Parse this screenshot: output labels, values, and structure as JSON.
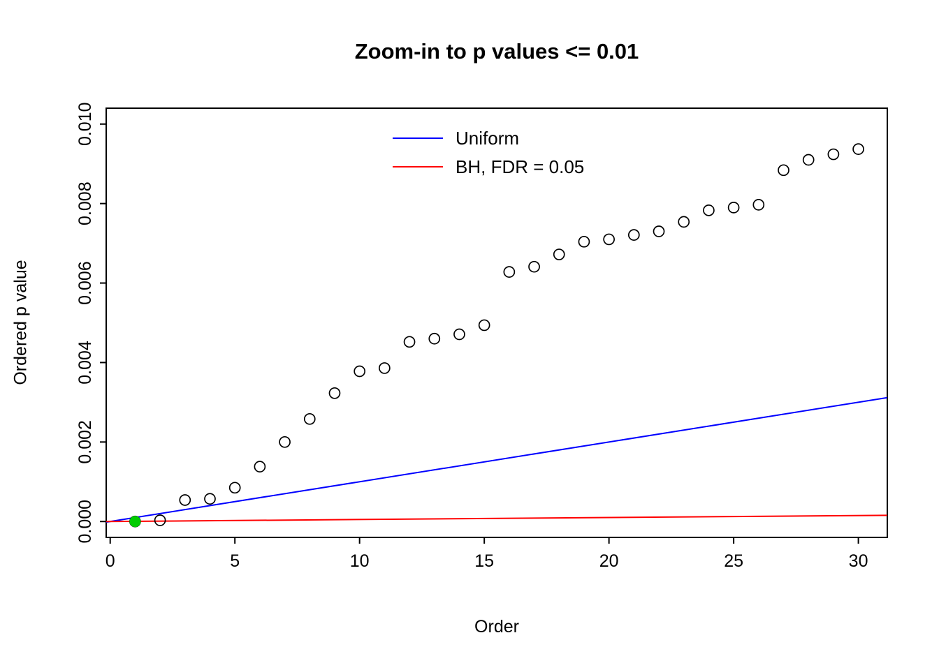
{
  "chart_data": {
    "type": "scatter",
    "title": "Zoom-in to p values <= 0.01",
    "xlabel": "Order",
    "ylabel": "Ordered p value",
    "xlim": [
      -0.16,
      31.16
    ],
    "ylim": [
      -0.0004,
      0.0104
    ],
    "grid": false,
    "xticks": [
      {
        "v": 0,
        "label": "0"
      },
      {
        "v": 5,
        "label": "5"
      },
      {
        "v": 10,
        "label": "10"
      },
      {
        "v": 15,
        "label": "15"
      },
      {
        "v": 20,
        "label": "20"
      },
      {
        "v": 25,
        "label": "25"
      },
      {
        "v": 30,
        "label": "30"
      }
    ],
    "yticks": [
      {
        "v": 0.0,
        "label": "0.000"
      },
      {
        "v": 0.002,
        "label": "0.002"
      },
      {
        "v": 0.004,
        "label": "0.004"
      },
      {
        "v": 0.006,
        "label": "0.006"
      },
      {
        "v": 0.008,
        "label": "0.008"
      },
      {
        "v": 0.01,
        "label": "0.010"
      }
    ],
    "legend": {
      "position": "top-center",
      "items": [
        {
          "label": "Uniform",
          "color": "#0000ff"
        },
        {
          "label": "BH, FDR = 0.05",
          "color": "#ff0000"
        }
      ]
    },
    "lines": [
      {
        "name": "Uniform",
        "color": "#0000ff",
        "x": [
          -0.16,
          31.16
        ],
        "y": [
          -1.6e-05,
          0.003116
        ]
      },
      {
        "name": "BH, FDR = 0.05",
        "color": "#ff0000",
        "x": [
          -0.16,
          31.16
        ],
        "y": [
          -8e-07,
          0.0001558
        ]
      }
    ],
    "points": {
      "marker": "open-circle",
      "color": "#000000",
      "x": [
        1,
        2,
        3,
        4,
        5,
        6,
        7,
        8,
        9,
        10,
        11,
        12,
        13,
        14,
        15,
        16,
        17,
        18,
        19,
        20,
        21,
        22,
        23,
        24,
        25,
        26,
        27,
        28,
        29,
        30
      ],
      "y": [
        0.0,
        3e-05,
        0.00054,
        0.00057,
        0.00085,
        0.00138,
        0.002,
        0.00258,
        0.00323,
        0.00378,
        0.00386,
        0.00452,
        0.0046,
        0.00471,
        0.00494,
        0.00628,
        0.00641,
        0.00672,
        0.00704,
        0.0071,
        0.00721,
        0.0073,
        0.00754,
        0.00783,
        0.0079,
        0.00797,
        0.00884,
        0.0091,
        0.00924,
        0.00937
      ]
    },
    "highlight_point": {
      "x": 1,
      "y": 0.0,
      "color": "#00cc00",
      "marker": "filled-circle"
    }
  }
}
